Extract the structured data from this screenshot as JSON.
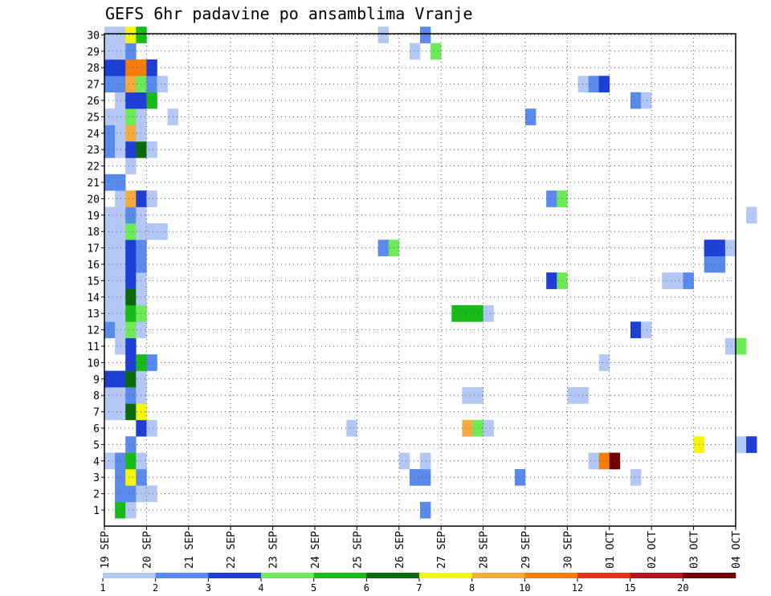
{
  "chart_data": {
    "type": "heatmap",
    "title": "GEFS 6hr padavine po ansamblima Vranje",
    "xlabel": "",
    "ylabel": "",
    "x_ticks": [
      "19 SEP",
      "20 SEP",
      "21 SEP",
      "22 SEP",
      "23 SEP",
      "24 SEP",
      "25 SEP",
      "26 SEP",
      "27 SEP",
      "28 SEP",
      "29 SEP",
      "30 SEP",
      "01 OCT",
      "02 OCT",
      "03 OCT",
      "04 OCT"
    ],
    "y_ticks": [
      "1",
      "2",
      "3",
      "4",
      "5",
      "6",
      "7",
      "8",
      "9",
      "10",
      "11",
      "12",
      "13",
      "14",
      "15",
      "16",
      "17",
      "18",
      "19",
      "20",
      "21",
      "22",
      "23",
      "24",
      "25",
      "26",
      "27",
      "28",
      "29",
      "30"
    ],
    "grid": true,
    "legend_position": "bottom",
    "legend": {
      "labels": [
        "1",
        "2",
        "3",
        "4",
        "5",
        "6",
        "7",
        "8",
        "10",
        "12",
        "15",
        "20"
      ],
      "colors": [
        "#b4c8f5",
        "#5a8aeb",
        "#1e3fd6",
        "#6cea57",
        "#19bb19",
        "#0b6b0b",
        "#f5f50a",
        "#f5aa3c",
        "#f57d0a",
        "#e6321e",
        "#b4141e",
        "#6e0000"
      ]
    },
    "cells": [
      [
        1,
        1,
        5
      ],
      [
        1,
        2,
        1
      ],
      [
        1,
        30,
        2
      ],
      [
        2,
        1,
        2
      ],
      [
        2,
        2,
        2
      ],
      [
        2,
        3,
        1
      ],
      [
        2,
        4,
        1
      ],
      [
        3,
        1,
        2
      ],
      [
        3,
        2,
        7
      ],
      [
        3,
        3,
        2
      ],
      [
        3,
        29,
        2
      ],
      [
        3,
        30,
        2
      ],
      [
        3,
        39,
        2
      ],
      [
        3,
        50,
        1
      ],
      [
        4,
        0,
        1
      ],
      [
        4,
        1,
        2
      ],
      [
        4,
        2,
        5
      ],
      [
        4,
        3,
        1
      ],
      [
        4,
        28,
        1
      ],
      [
        4,
        30,
        1
      ],
      [
        4,
        46,
        1
      ],
      [
        4,
        47,
        9
      ],
      [
        4,
        48,
        12
      ],
      [
        5,
        2,
        2
      ],
      [
        5,
        56,
        7
      ],
      [
        5,
        60,
        1
      ],
      [
        5,
        61,
        3
      ],
      [
        6,
        3,
        3
      ],
      [
        6,
        4,
        1
      ],
      [
        6,
        23,
        1
      ],
      [
        6,
        34,
        8
      ],
      [
        6,
        35,
        4
      ],
      [
        6,
        36,
        1
      ],
      [
        7,
        0,
        1
      ],
      [
        7,
        1,
        1
      ],
      [
        7,
        2,
        6
      ],
      [
        7,
        3,
        7
      ],
      [
        8,
        0,
        1
      ],
      [
        8,
        1,
        1
      ],
      [
        8,
        2,
        2
      ],
      [
        8,
        3,
        1
      ],
      [
        8,
        34,
        1
      ],
      [
        8,
        35,
        1
      ],
      [
        8,
        44,
        1
      ],
      [
        8,
        45,
        1
      ],
      [
        9,
        0,
        3
      ],
      [
        9,
        1,
        3
      ],
      [
        9,
        2,
        6
      ],
      [
        9,
        3,
        1
      ],
      [
        10,
        2,
        3
      ],
      [
        10,
        3,
        5
      ],
      [
        10,
        4,
        2
      ],
      [
        10,
        47,
        1
      ],
      [
        11,
        1,
        1
      ],
      [
        11,
        2,
        3
      ],
      [
        11,
        59,
        1
      ],
      [
        11,
        60,
        4
      ],
      [
        12,
        0,
        2
      ],
      [
        12,
        1,
        1
      ],
      [
        12,
        2,
        4
      ],
      [
        12,
        3,
        1
      ],
      [
        12,
        50,
        3
      ],
      [
        12,
        51,
        1
      ],
      [
        13,
        0,
        1
      ],
      [
        13,
        1,
        1
      ],
      [
        13,
        2,
        5
      ],
      [
        13,
        3,
        4
      ],
      [
        13,
        33,
        5
      ],
      [
        13,
        34,
        5
      ],
      [
        13,
        35,
        5
      ],
      [
        13,
        36,
        1
      ],
      [
        14,
        0,
        1
      ],
      [
        14,
        1,
        1
      ],
      [
        14,
        2,
        6
      ],
      [
        14,
        3,
        1
      ],
      [
        15,
        0,
        1
      ],
      [
        15,
        1,
        1
      ],
      [
        15,
        2,
        3
      ],
      [
        15,
        3,
        1
      ],
      [
        15,
        42,
        3
      ],
      [
        15,
        43,
        4
      ],
      [
        15,
        53,
        1
      ],
      [
        15,
        54,
        1
      ],
      [
        15,
        55,
        2
      ],
      [
        16,
        0,
        1
      ],
      [
        16,
        1,
        1
      ],
      [
        16,
        2,
        3
      ],
      [
        16,
        3,
        2
      ],
      [
        16,
        57,
        2
      ],
      [
        16,
        58,
        2
      ],
      [
        17,
        0,
        1
      ],
      [
        17,
        1,
        1
      ],
      [
        17,
        2,
        3
      ],
      [
        17,
        3,
        2
      ],
      [
        17,
        26,
        2
      ],
      [
        17,
        27,
        4
      ],
      [
        17,
        57,
        3
      ],
      [
        17,
        58,
        3
      ],
      [
        17,
        59,
        1
      ],
      [
        18,
        0,
        1
      ],
      [
        18,
        1,
        1
      ],
      [
        18,
        2,
        4
      ],
      [
        18,
        3,
        1
      ],
      [
        18,
        4,
        1
      ],
      [
        18,
        5,
        1
      ],
      [
        19,
        0,
        1
      ],
      [
        19,
        1,
        1
      ],
      [
        19,
        2,
        2
      ],
      [
        19,
        3,
        1
      ],
      [
        19,
        61,
        1
      ],
      [
        20,
        1,
        1
      ],
      [
        20,
        2,
        8
      ],
      [
        20,
        3,
        3
      ],
      [
        20,
        4,
        1
      ],
      [
        20,
        42,
        2
      ],
      [
        20,
        43,
        4
      ],
      [
        21,
        0,
        2
      ],
      [
        21,
        1,
        2
      ],
      [
        22,
        2,
        1
      ],
      [
        23,
        0,
        2
      ],
      [
        23,
        1,
        1
      ],
      [
        23,
        2,
        3
      ],
      [
        23,
        3,
        6
      ],
      [
        23,
        4,
        1
      ],
      [
        24,
        0,
        2
      ],
      [
        24,
        1,
        1
      ],
      [
        24,
        2,
        8
      ],
      [
        24,
        3,
        1
      ],
      [
        25,
        0,
        1
      ],
      [
        25,
        1,
        1
      ],
      [
        25,
        2,
        4
      ],
      [
        25,
        3,
        1
      ],
      [
        25,
        6,
        1
      ],
      [
        25,
        40,
        2
      ],
      [
        26,
        1,
        1
      ],
      [
        26,
        2,
        3
      ],
      [
        26,
        3,
        3
      ],
      [
        26,
        4,
        5
      ],
      [
        26,
        50,
        2
      ],
      [
        26,
        51,
        1
      ],
      [
        27,
        0,
        2
      ],
      [
        27,
        1,
        2
      ],
      [
        27,
        2,
        8
      ],
      [
        27,
        3,
        4
      ],
      [
        27,
        4,
        2
      ],
      [
        27,
        5,
        1
      ],
      [
        27,
        45,
        1
      ],
      [
        27,
        46,
        2
      ],
      [
        27,
        47,
        3
      ],
      [
        28,
        0,
        3
      ],
      [
        28,
        1,
        3
      ],
      [
        28,
        2,
        9
      ],
      [
        28,
        3,
        9
      ],
      [
        28,
        4,
        3
      ],
      [
        29,
        0,
        1
      ],
      [
        29,
        1,
        1
      ],
      [
        29,
        2,
        2
      ],
      [
        29,
        29,
        1
      ],
      [
        29,
        31,
        4
      ],
      [
        30,
        0,
        1
      ],
      [
        30,
        1,
        1
      ],
      [
        30,
        2,
        7
      ],
      [
        30,
        3,
        5
      ],
      [
        30,
        26,
        1
      ],
      [
        30,
        30,
        2
      ]
    ]
  }
}
